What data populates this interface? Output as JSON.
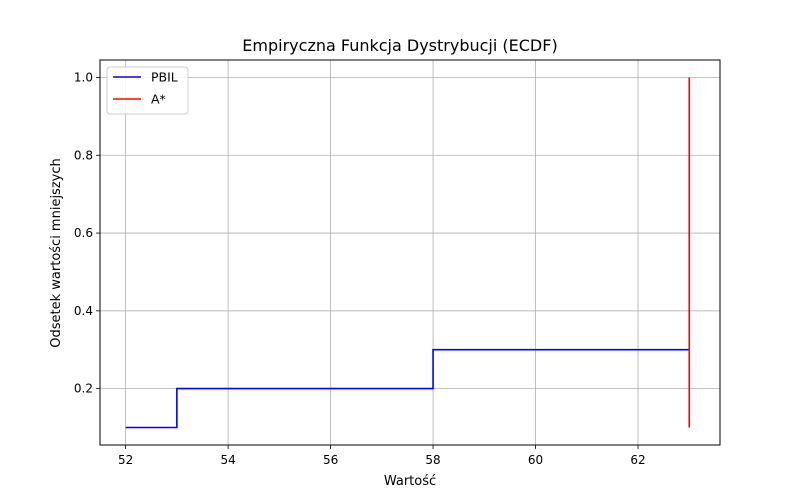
{
  "chart_data": {
    "type": "line",
    "title": "Empiryczna Funkcja Dystrybucji (ECDF)",
    "xlabel": "Wartość",
    "ylabel": "Odsetek wartości mniejszych",
    "xlim": [
      51.5,
      63.6
    ],
    "ylim": [
      0.055,
      1.045
    ],
    "xticks": [
      52,
      54,
      56,
      58,
      60,
      62
    ],
    "yticks": [
      0.2,
      0.4,
      0.6,
      0.8,
      1.0
    ],
    "xtick_labels": [
      "52",
      "54",
      "56",
      "58",
      "60",
      "62"
    ],
    "ytick_labels": [
      "0.2",
      "0.4",
      "0.6",
      "0.8",
      "1.0"
    ],
    "grid": true,
    "legend": "top-left",
    "series": [
      {
        "name": "PBIL",
        "color": "#0000ff",
        "step": "post",
        "x": [
          52,
          53,
          58,
          63
        ],
        "y": [
          0.1,
          0.2,
          0.3,
          0.3
        ]
      },
      {
        "name": "A*",
        "color": "#ff0000",
        "step": "post",
        "x": [
          63,
          63
        ],
        "y": [
          0.1,
          1.0
        ]
      }
    ]
  }
}
